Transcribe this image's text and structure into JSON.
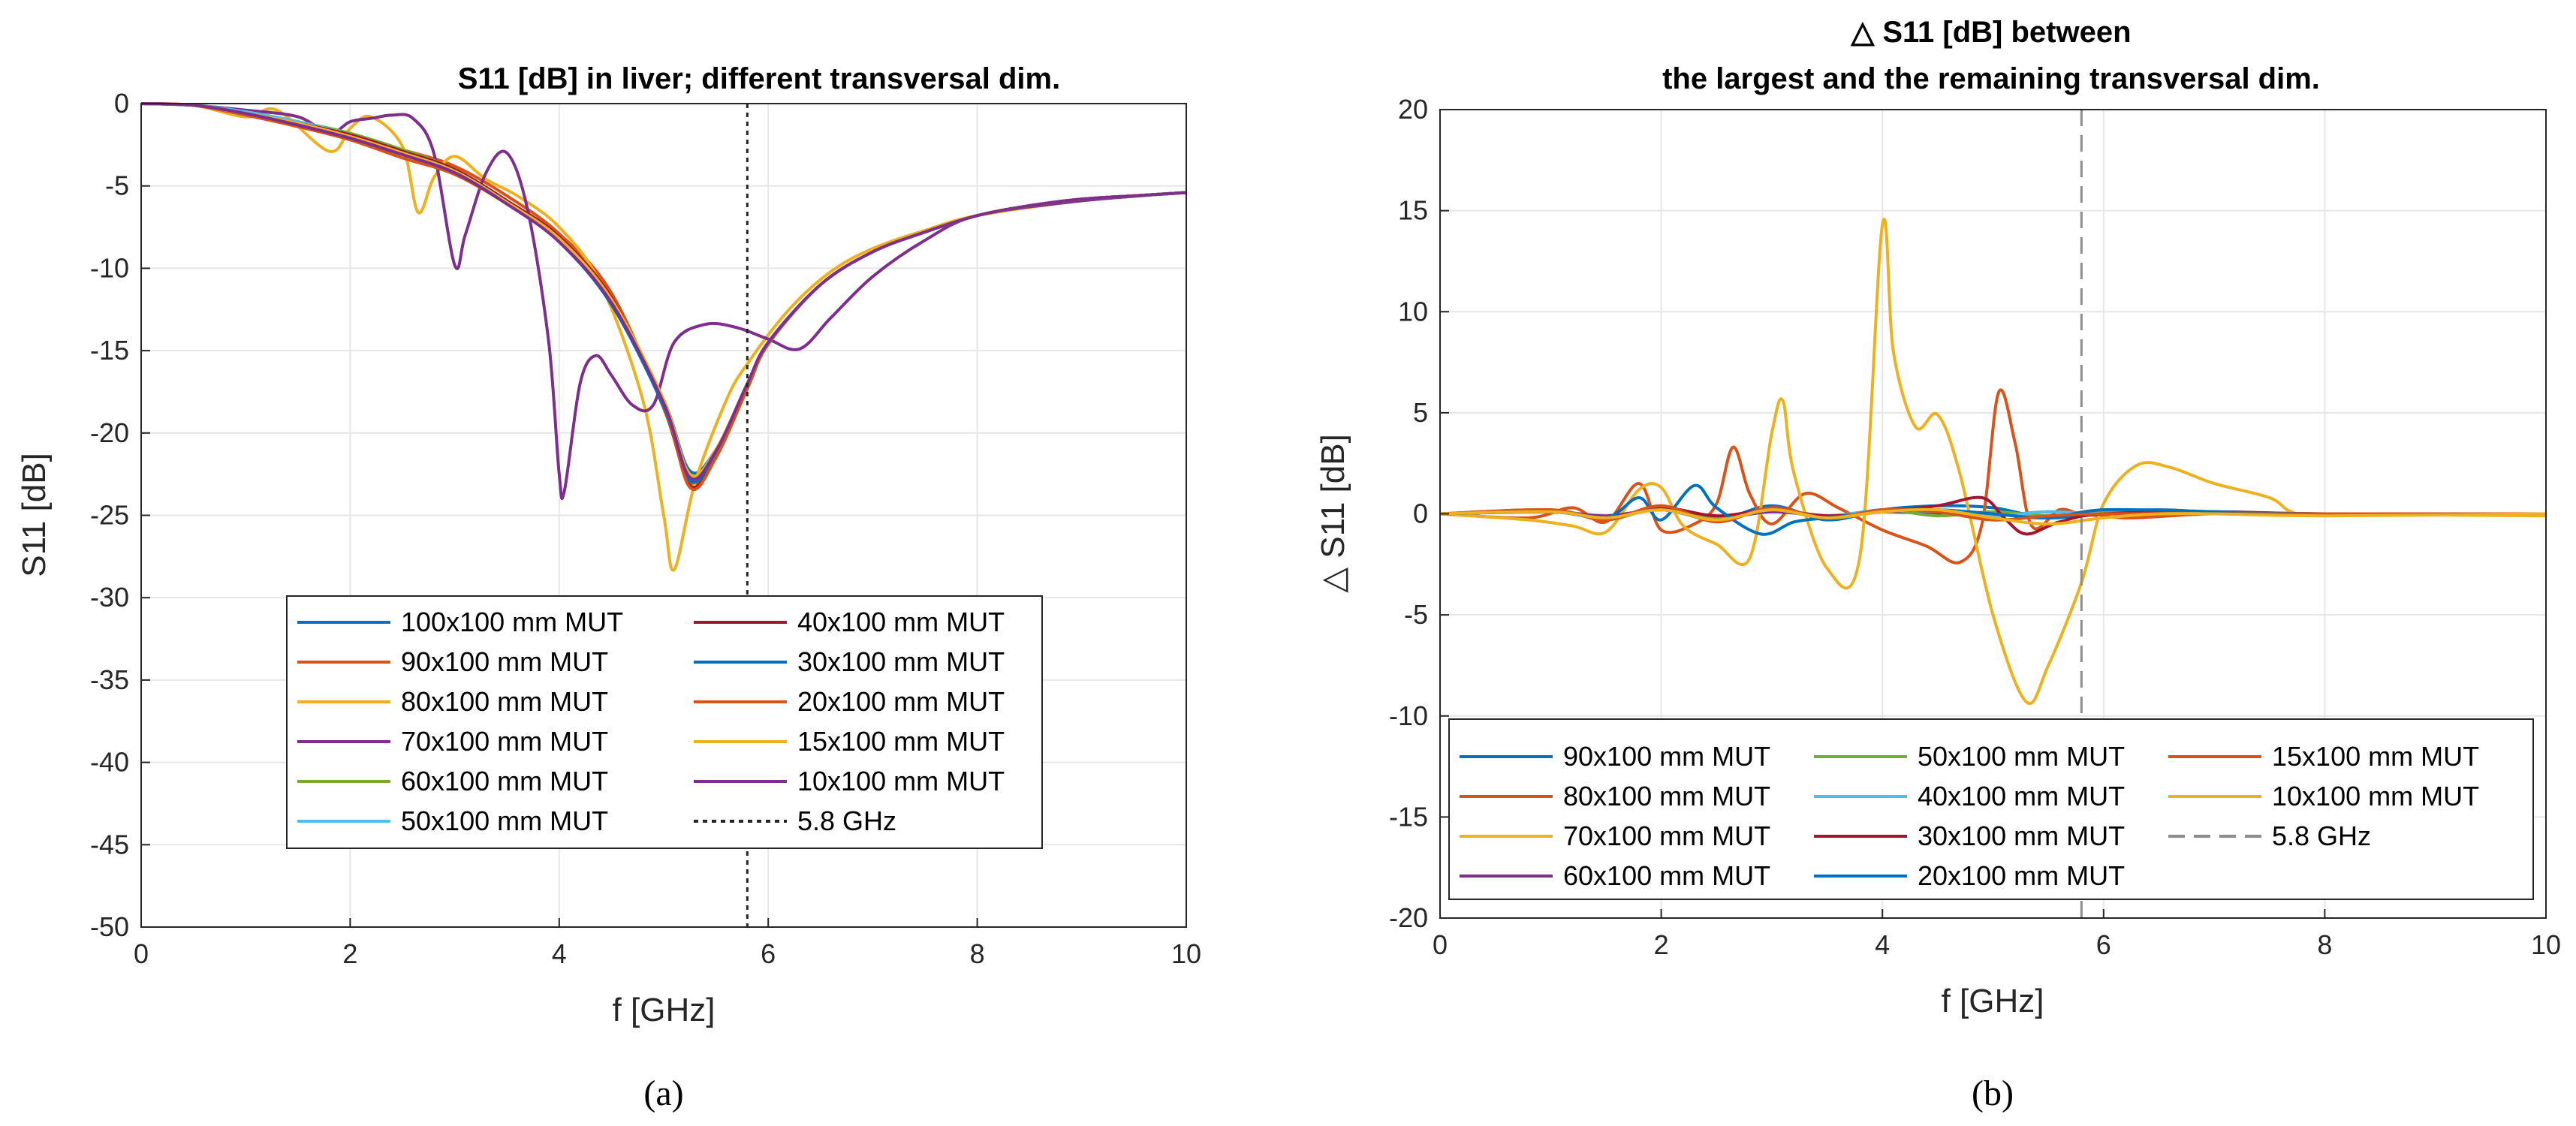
{
  "chart_data": [
    {
      "type": "line",
      "title": "S11 [dB] in liver; different transversal dim.",
      "xlabel": "f [GHz]",
      "ylabel": "S11 [dB]",
      "xlim": [
        0,
        10
      ],
      "ylim": [
        -50,
        0
      ],
      "xticks": [
        "0",
        "2",
        "4",
        "6",
        "8",
        "10"
      ],
      "yticks": [
        "0",
        "-5",
        "-10",
        "-15",
        "-20",
        "-25",
        "-30",
        "-35",
        "-40",
        "-45",
        "-50"
      ],
      "grid": true,
      "legend_position": "lower-center",
      "legend_columns": 2,
      "caption": "(a)",
      "marker_label": "5.8 GHz",
      "marker_x": 5.8,
      "series": [
        {
          "name": "100x100 mm MUT",
          "color": "#0072BD",
          "x": [
            0,
            0.5,
            1,
            1.5,
            2,
            2.5,
            3,
            3.5,
            4,
            4.5,
            5,
            5.25,
            5.5,
            5.8,
            6,
            6.5,
            7,
            7.5,
            8,
            8.5,
            9,
            9.5,
            10
          ],
          "y": [
            0,
            -0.1,
            -0.6,
            -1.3,
            -2,
            -3,
            -4.2,
            -6,
            -8.3,
            -12,
            -18,
            -22.3,
            -21,
            -17,
            -14.5,
            -11,
            -9,
            -7.8,
            -6.8,
            -6.2,
            -5.8,
            -5.6,
            -5.4
          ]
        },
        {
          "name": "90x100 mm MUT",
          "color": "#D95319",
          "x": [
            0,
            0.5,
            1,
            1.5,
            2,
            2.5,
            3,
            3.5,
            4,
            4.5,
            5,
            5.25,
            5.5,
            5.8,
            6,
            6.5,
            7,
            7.5,
            8,
            8.5,
            9,
            9.5,
            10
          ],
          "y": [
            0,
            -0.1,
            -0.6,
            -1.2,
            -1.9,
            -2.8,
            -3.8,
            -5.6,
            -7.9,
            -11.5,
            -18.5,
            -23,
            -21.3,
            -17.2,
            -14.6,
            -11,
            -9,
            -7.8,
            -6.8,
            -6.2,
            -5.8,
            -5.6,
            -5.4
          ]
        },
        {
          "name": "80x100 mm MUT",
          "color": "#EDB120",
          "x": [
            0,
            0.5,
            1,
            1.3,
            1.8,
            2,
            2.2,
            2.5,
            2.65,
            2.8,
            3,
            3.3,
            3.6,
            4,
            4.4,
            4.8,
            5,
            5.1,
            5.3,
            5.6,
            5.8,
            6.2,
            6.6,
            7,
            7.5,
            8,
            9,
            10
          ],
          "y": [
            0,
            -0.1,
            -0.8,
            -0.4,
            -2.9,
            -1.5,
            -0.8,
            -2.6,
            -6.6,
            -4.5,
            -3.2,
            -4.6,
            -5.6,
            -7.5,
            -11,
            -18,
            -25,
            -28.3,
            -23,
            -18,
            -15.8,
            -12.5,
            -10.2,
            -8.8,
            -7.7,
            -6.8,
            -5.9,
            -5.4
          ]
        },
        {
          "name": "70x100 mm MUT",
          "color": "#7E2F8E",
          "x": [
            0,
            0.5,
            1,
            1.5,
            1.8,
            2,
            2.2,
            2.4,
            2.6,
            2.8,
            3,
            3.1,
            3.3,
            3.5,
            3.7,
            3.9,
            4,
            4.05,
            4.2,
            4.35,
            4.5,
            4.7,
            4.9,
            5.1,
            5.4,
            5.7,
            6,
            6.3,
            6.6,
            7,
            7.5,
            8,
            9,
            10
          ],
          "y": [
            0,
            -0.1,
            -0.4,
            -0.8,
            -1.8,
            -1.1,
            -0.9,
            -0.7,
            -0.9,
            -3,
            -9.8,
            -8,
            -4.2,
            -3,
            -6.5,
            -14.5,
            -22.5,
            -23.5,
            -17,
            -15.3,
            -16.5,
            -18.3,
            -18.3,
            -14.5,
            -13.4,
            -13.6,
            -14.3,
            -14.9,
            -13,
            -10.5,
            -8.3,
            -6.8,
            -5.9,
            -5.4
          ]
        },
        {
          "name": "60x100 mm MUT",
          "color": "#77AC30",
          "x": [
            0,
            0.5,
            1,
            1.5,
            2,
            2.5,
            3,
            3.5,
            4,
            4.5,
            5,
            5.25,
            5.5,
            5.8,
            6,
            6.5,
            7,
            7.5,
            8,
            8.5,
            9,
            9.5,
            10
          ],
          "y": [
            0,
            -0.1,
            -0.5,
            -1.1,
            -1.8,
            -2.8,
            -4,
            -5.9,
            -8.2,
            -12,
            -18.2,
            -22.8,
            -21.2,
            -17.1,
            -14.5,
            -11,
            -9,
            -7.8,
            -6.8,
            -6.2,
            -5.8,
            -5.6,
            -5.4
          ]
        },
        {
          "name": "50x100 mm MUT",
          "color": "#4DBEEE",
          "x": [
            0,
            0.5,
            1,
            1.5,
            2,
            2.5,
            3,
            3.5,
            4,
            4.5,
            5,
            5.25,
            5.5,
            5.8,
            6,
            6.5,
            7,
            7.5,
            8,
            8.5,
            9,
            9.5,
            10
          ],
          "y": [
            0,
            -0.1,
            -0.5,
            -1.1,
            -1.9,
            -2.9,
            -4.1,
            -6,
            -8.2,
            -12,
            -18.1,
            -22.6,
            -21.1,
            -17,
            -14.5,
            -11,
            -9,
            -7.8,
            -6.8,
            -6.2,
            -5.8,
            -5.6,
            -5.4
          ]
        },
        {
          "name": "40x100 mm MUT",
          "color": "#A2142F",
          "x": [
            0,
            0.5,
            1,
            1.5,
            2,
            2.5,
            3,
            3.5,
            4,
            4.5,
            5,
            5.25,
            5.5,
            5.8,
            6,
            6.5,
            7,
            7.5,
            8,
            8.5,
            9,
            9.5,
            10
          ],
          "y": [
            0,
            -0.1,
            -0.6,
            -1.2,
            -1.9,
            -2.9,
            -4,
            -5.9,
            -8.1,
            -11.8,
            -18.3,
            -23.2,
            -21.4,
            -17.3,
            -14.6,
            -11,
            -9,
            -7.8,
            -6.8,
            -6.2,
            -5.8,
            -5.6,
            -5.4
          ]
        },
        {
          "name": "30x100 mm MUT",
          "color": "#0072BD",
          "x": [
            0,
            0.5,
            1,
            1.5,
            2,
            2.5,
            3,
            3.5,
            4,
            4.5,
            5,
            5.25,
            5.5,
            5.8,
            6,
            6.5,
            7,
            7.5,
            8,
            8.5,
            9,
            9.5,
            10
          ],
          "y": [
            0,
            -0.1,
            -0.6,
            -1.3,
            -2.1,
            -3,
            -4.1,
            -6,
            -8.4,
            -12.2,
            -18.4,
            -22.9,
            -21.2,
            -17.1,
            -14.5,
            -11,
            -9,
            -7.8,
            -6.8,
            -6.2,
            -5.8,
            -5.6,
            -5.4
          ]
        },
        {
          "name": "20x100 mm MUT",
          "color": "#D95319",
          "x": [
            0,
            0.5,
            1,
            1.5,
            2,
            2.5,
            3,
            3.5,
            4,
            4.5,
            5,
            5.25,
            5.5,
            5.8,
            6,
            6.5,
            7,
            7.5,
            8,
            8.5,
            9,
            9.5,
            10
          ],
          "y": [
            0,
            -0.1,
            -0.7,
            -1.4,
            -2.2,
            -3.3,
            -4.3,
            -6.1,
            -8.3,
            -12,
            -18.2,
            -23.3,
            -21.5,
            -17.3,
            -14.6,
            -11,
            -9,
            -7.8,
            -6.8,
            -6.2,
            -5.8,
            -5.6,
            -5.4
          ]
        },
        {
          "name": "15x100 mm MUT",
          "color": "#EDB120",
          "x": [
            0,
            0.5,
            1,
            1.5,
            2,
            2.5,
            3,
            3.5,
            4,
            4.5,
            5,
            5.25,
            5.5,
            5.8,
            6,
            6.5,
            7,
            7.5,
            8,
            8.5,
            9,
            9.5,
            10
          ],
          "y": [
            0,
            -0.1,
            -0.6,
            -1.2,
            -2,
            -3,
            -4.1,
            -6,
            -8.2,
            -11.9,
            -18,
            -22.5,
            -21,
            -17,
            -14.5,
            -11,
            -9,
            -7.8,
            -6.8,
            -6.2,
            -5.8,
            -5.6,
            -5.4
          ]
        },
        {
          "name": "10x100 mm MUT",
          "color": "#7E2F8E",
          "x": [
            0,
            0.5,
            1,
            1.5,
            2,
            2.5,
            3,
            3.5,
            4,
            4.5,
            5,
            5.25,
            5.5,
            5.8,
            6,
            6.5,
            7,
            7.5,
            8,
            8.5,
            9,
            9.5,
            10
          ],
          "y": [
            0,
            -0.1,
            -0.6,
            -1.3,
            -2.1,
            -3.1,
            -4.2,
            -6.1,
            -8.4,
            -12.1,
            -18.2,
            -22.7,
            -21.1,
            -17,
            -14.5,
            -11,
            -9,
            -7.8,
            -6.8,
            -6.2,
            -5.8,
            -5.6,
            -5.4
          ]
        }
      ]
    },
    {
      "type": "line",
      "title": "△ S11 [dB] between",
      "title_line2": "the largest and the remaining transversal dim.",
      "xlabel": "f [GHz]",
      "ylabel": "△ S11 [dB]",
      "xlim": [
        0,
        10
      ],
      "ylim": [
        -20,
        20
      ],
      "xticks": [
        "0",
        "2",
        "4",
        "6",
        "8",
        "10"
      ],
      "yticks": [
        "20",
        "15",
        "10",
        "5",
        "0",
        "-5",
        "-10",
        "-15",
        "-20"
      ],
      "grid": true,
      "legend_position": "lower-center",
      "legend_columns": 3,
      "caption": "(b)",
      "marker_label": "5.8 GHz",
      "marker_x": 5.8,
      "series": [
        {
          "name": "90x100 mm MUT",
          "color": "#0072BD",
          "x": [
            0,
            1,
            1.5,
            2,
            2.5,
            3,
            3.5,
            4,
            4.5,
            5,
            5.5,
            6,
            6.5,
            7,
            8,
            10
          ],
          "y": [
            0,
            0.1,
            -0.2,
            0.2,
            -0.3,
            0.4,
            -0.3,
            0.2,
            0.4,
            0.3,
            -0.2,
            0.1,
            0.2,
            0.1,
            0,
            0
          ]
        },
        {
          "name": "80x100 mm MUT",
          "color": "#D95319",
          "x": [
            0,
            0.8,
            1.2,
            1.5,
            1.8,
            2,
            2.3,
            2.5,
            2.65,
            2.8,
            3,
            3.3,
            3.6,
            4,
            4.4,
            4.7,
            4.9,
            5.05,
            5.2,
            5.35,
            5.6,
            5.8,
            6.2,
            6.6,
            7,
            8,
            10
          ],
          "y": [
            0,
            -0.2,
            0.3,
            -0.4,
            1.5,
            -0.8,
            -0.5,
            0.5,
            3.3,
            1,
            -0.5,
            1,
            0.3,
            -0.8,
            -1.6,
            -2.4,
            -0.5,
            6,
            3.5,
            -0.6,
            0.2,
            0,
            -0.2,
            -0.1,
            0,
            0,
            0
          ]
        },
        {
          "name": "70x100 mm MUT",
          "color": "#EDB120",
          "x": [
            0,
            0.8,
            1.2,
            1.5,
            1.8,
            2,
            2.2,
            2.5,
            2.8,
            3,
            3.1,
            3.2,
            3.5,
            3.8,
            4,
            4.1,
            4.3,
            4.5,
            4.7,
            5,
            5.3,
            5.5,
            5.8,
            6,
            6.3,
            6.6,
            7,
            7.5,
            7.7,
            8,
            10
          ],
          "y": [
            0,
            -0.3,
            -0.6,
            -0.9,
            1.2,
            1.3,
            -0.6,
            -1.5,
            -2.2,
            4,
            5.6,
            2,
            -2.7,
            -2,
            14.3,
            8,
            4.3,
            4.9,
            2,
            -5,
            -9.3,
            -7.5,
            -3.4,
            0.5,
            2.4,
            2.3,
            1.5,
            0.8,
            0.1,
            0,
            -0.1
          ]
        },
        {
          "name": "60x100 mm MUT",
          "color": "#7E2F8E",
          "x": [
            0,
            1,
            1.5,
            2,
            2.5,
            3,
            3.5,
            4,
            4.5,
            5,
            5.5,
            6,
            7,
            8,
            10
          ],
          "y": [
            0,
            0.1,
            -0.1,
            0.2,
            -0.2,
            0.1,
            -0.1,
            0.1,
            0,
            -0.1,
            0.1,
            0,
            0,
            0,
            0
          ]
        },
        {
          "name": "50x100 mm MUT",
          "color": "#77AC30",
          "x": [
            0,
            1,
            1.5,
            2,
            2.5,
            3,
            3.5,
            4,
            4.5,
            5,
            5.5,
            6,
            7,
            8,
            10
          ],
          "y": [
            0,
            0.2,
            -0.3,
            0.3,
            -0.2,
            0.2,
            -0.2,
            0.2,
            -0.1,
            0.1,
            -0.1,
            0.1,
            0,
            0,
            0
          ]
        },
        {
          "name": "40x100 mm MUT",
          "color": "#4DBEEE",
          "x": [
            0,
            1,
            1.5,
            2,
            2.5,
            3,
            3.5,
            4,
            4.5,
            5,
            5.5,
            6,
            7,
            8,
            10
          ],
          "y": [
            0,
            0.1,
            -0.2,
            0.2,
            -0.3,
            0.2,
            -0.1,
            0.2,
            0.1,
            -0.1,
            0.1,
            0,
            0,
            0,
            0
          ]
        },
        {
          "name": "30x100 mm MUT",
          "color": "#A2142F",
          "x": [
            0,
            1,
            1.5,
            2,
            2.5,
            3,
            3.5,
            4,
            4.5,
            4.9,
            5.1,
            5.3,
            5.6,
            6,
            7,
            8,
            10
          ],
          "y": [
            0,
            0.1,
            -0.2,
            0.3,
            -0.1,
            0.2,
            -0.1,
            0.1,
            0.4,
            0.8,
            -0.2,
            -1,
            -0.4,
            0,
            0.1,
            0,
            0
          ]
        },
        {
          "name": "20x100 mm MUT",
          "color": "#0072BD",
          "x": [
            0,
            1,
            1.5,
            1.8,
            2,
            2.3,
            2.5,
            2.9,
            3.2,
            3.5,
            4,
            4.5,
            5,
            5.5,
            6,
            7,
            8,
            10
          ],
          "y": [
            0,
            0.1,
            -0.2,
            0.8,
            -0.3,
            1.4,
            0.3,
            -1,
            -0.4,
            -0.2,
            0.1,
            0.2,
            0,
            -0.2,
            0.2,
            0.1,
            0,
            0
          ]
        },
        {
          "name": "15x100 mm MUT",
          "color": "#D95319",
          "x": [
            0,
            1,
            1.5,
            2,
            2.5,
            3,
            3.5,
            4,
            4.5,
            5,
            5.5,
            6,
            7,
            8,
            10
          ],
          "y": [
            0,
            0.2,
            -0.3,
            0.4,
            -0.4,
            0.3,
            -0.2,
            0.2,
            0.1,
            -0.3,
            -0.1,
            0,
            0,
            0,
            0
          ]
        },
        {
          "name": "10x100 mm MUT",
          "color": "#EDB120",
          "x": [
            0,
            1,
            1.5,
            2,
            2.5,
            3,
            3.5,
            4,
            4.5,
            5,
            5.5,
            6,
            6.5,
            7,
            8,
            10
          ],
          "y": [
            0,
            0.1,
            -0.2,
            0.2,
            -0.3,
            0.2,
            -0.2,
            0.1,
            0.2,
            -0.2,
            -0.5,
            -0.2,
            0,
            0,
            -0.1,
            0
          ]
        }
      ]
    }
  ]
}
